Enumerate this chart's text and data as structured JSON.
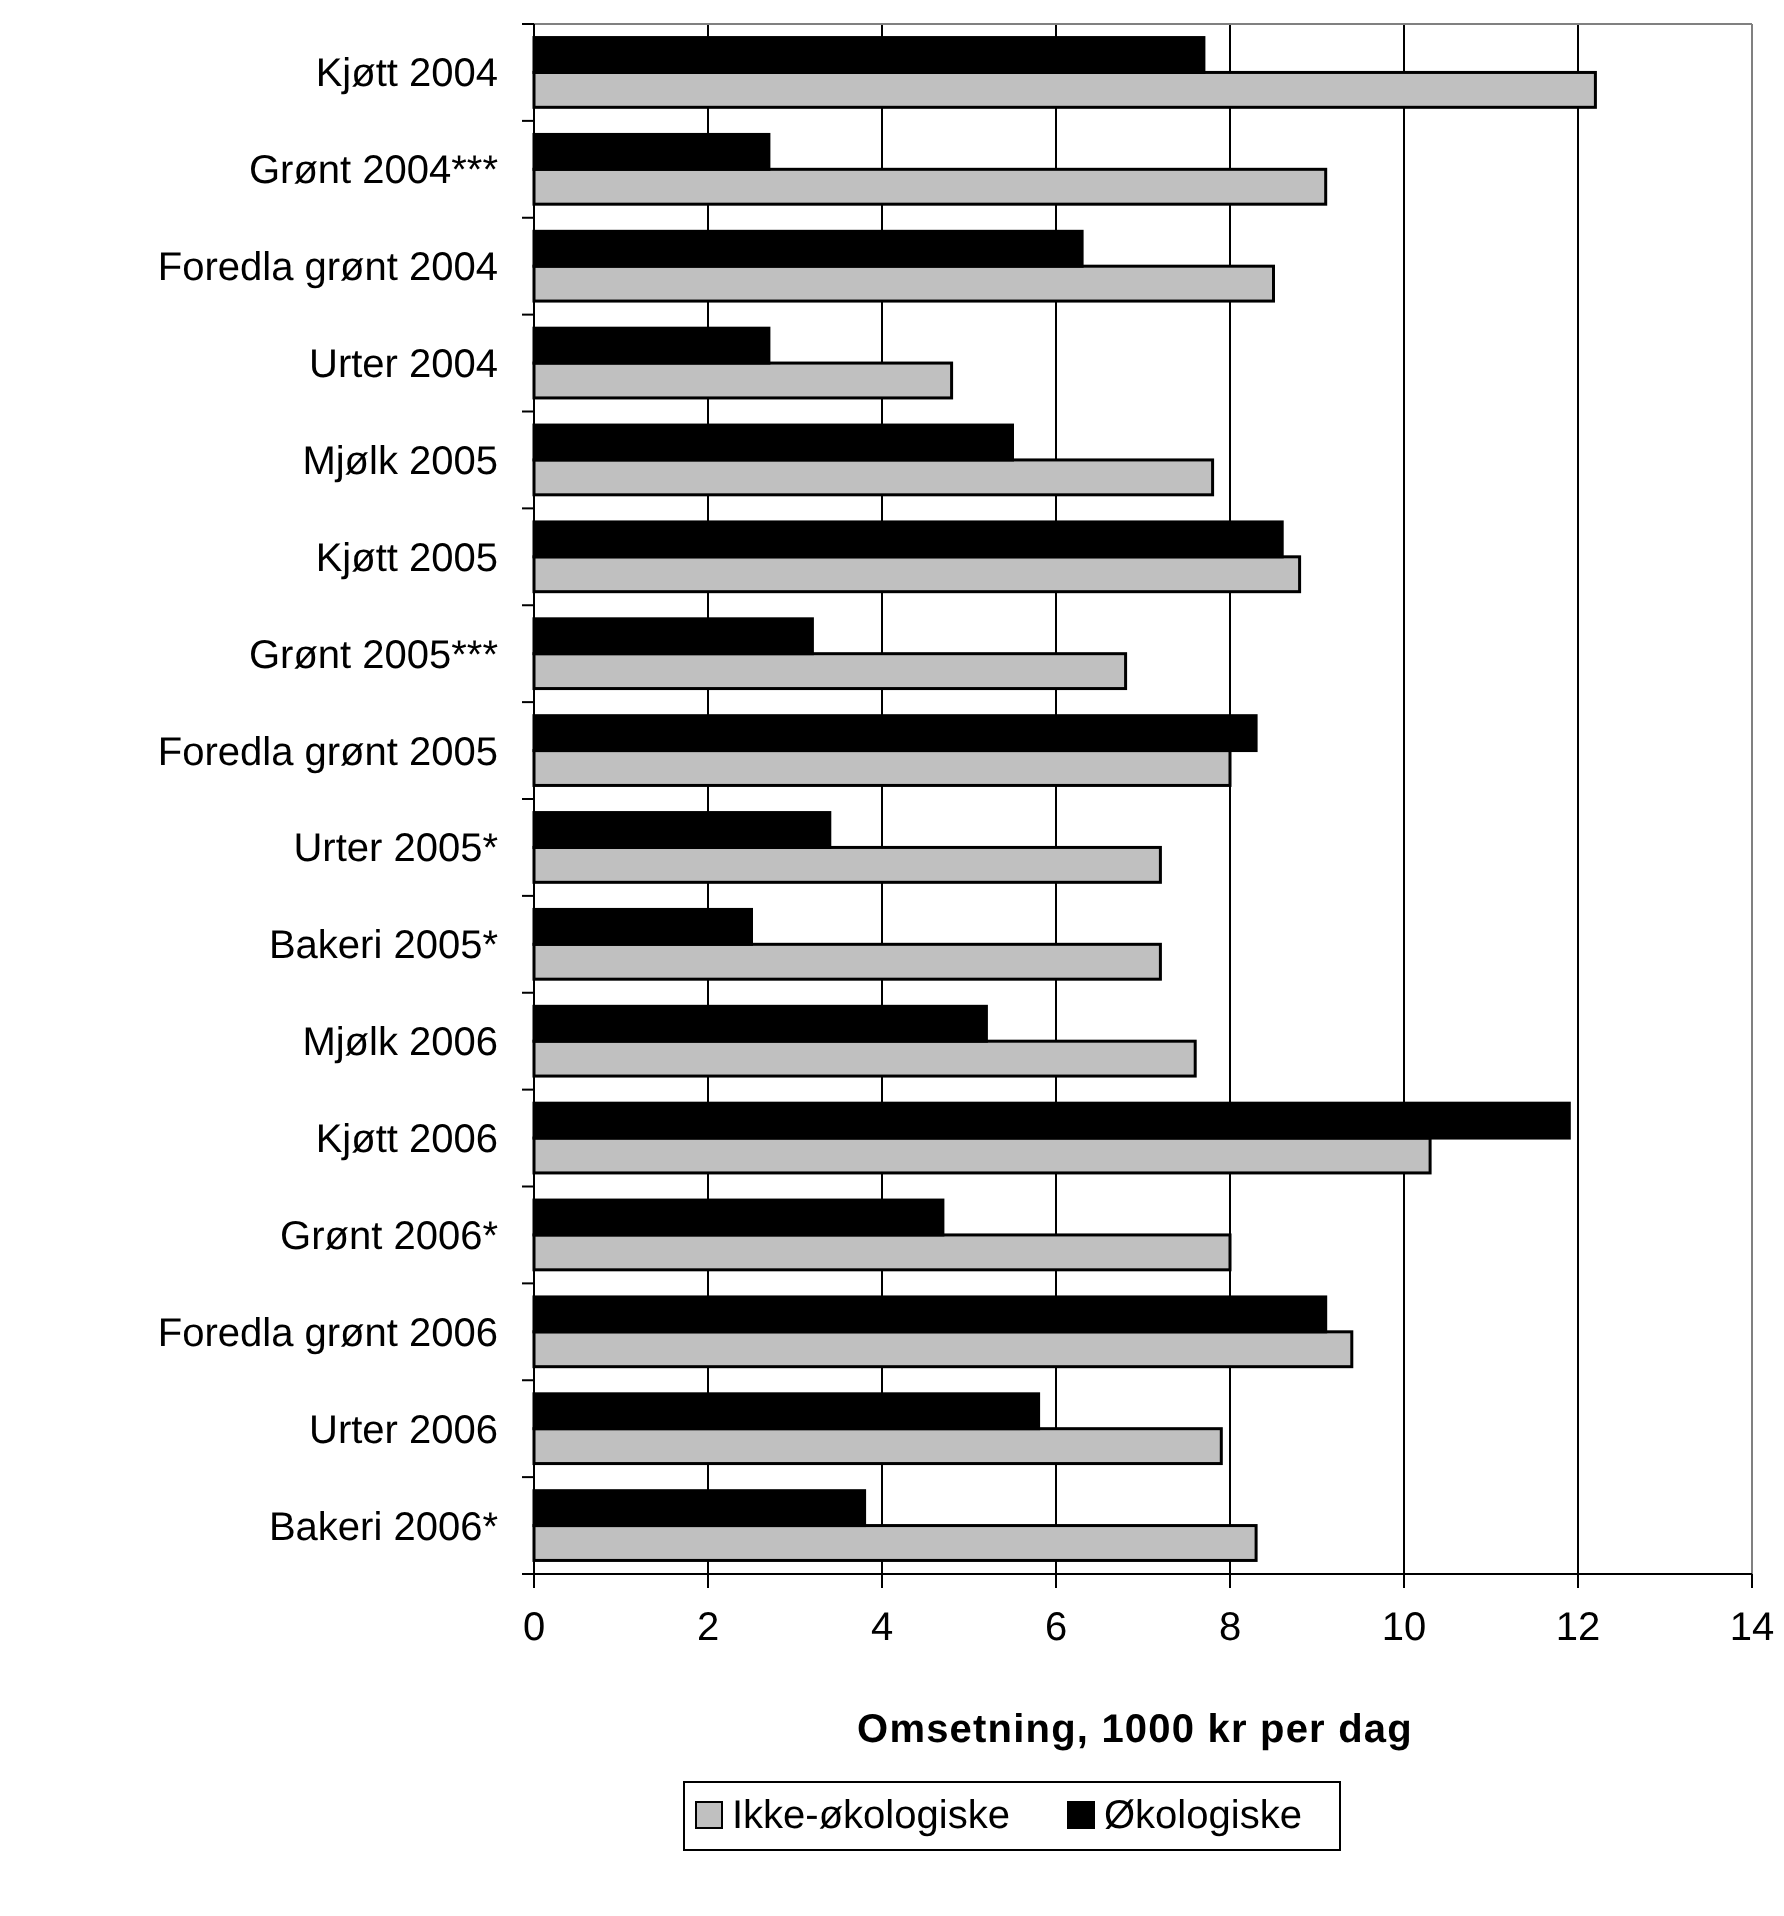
{
  "chart_data": {
    "type": "bar",
    "orientation": "horizontal",
    "xlabel": "Omsetning, 1000 kr per dag",
    "categories": [
      "Kjøtt 2004",
      "Grønt 2004***",
      "Foredla grønt 2004",
      "Urter 2004",
      "Mjølk 2005",
      "Kjøtt 2005",
      "Grønt 2005***",
      "Foredla grønt 2005",
      "Urter 2005*",
      "Bakeri 2005*",
      "Mjølk 2006",
      "Kjøtt 2006",
      "Grønt 2006*",
      "Foredla grønt 2006",
      "Urter 2006",
      "Bakeri 2006*"
    ],
    "series": [
      {
        "name": "Ikke-økologiske",
        "color": "#c0c0c0",
        "values": [
          12.2,
          9.1,
          8.5,
          4.8,
          7.8,
          8.8,
          6.8,
          8.0,
          7.2,
          7.2,
          7.6,
          10.3,
          8.0,
          9.4,
          7.9,
          8.3
        ]
      },
      {
        "name": "Økologiske",
        "color": "#000000",
        "values": [
          7.7,
          2.7,
          6.3,
          2.7,
          5.5,
          8.6,
          3.2,
          8.3,
          3.4,
          2.5,
          5.2,
          11.9,
          4.7,
          9.1,
          5.8,
          3.8
        ]
      }
    ],
    "xlim": [
      0,
      14
    ],
    "xticks": [
      0,
      2,
      4,
      6,
      8,
      10,
      12,
      14
    ],
    "grid": "x",
    "legend": "bottom"
  }
}
